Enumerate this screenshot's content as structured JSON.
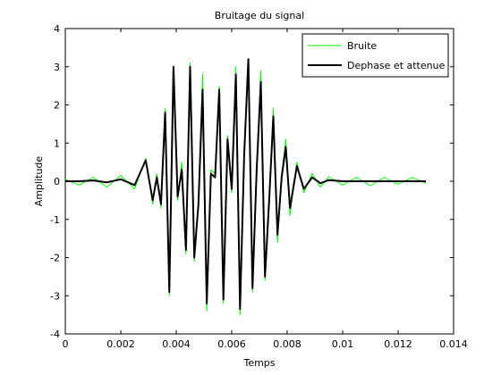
{
  "chart_data": {
    "type": "line",
    "title": "Bruitage du signal",
    "xlabel": "Temps",
    "ylabel": "Amplitude",
    "xlim": [
      0,
      0.014
    ],
    "ylim": [
      -4,
      4
    ],
    "xticks": [
      0,
      0.002,
      0.004,
      0.006,
      0.008,
      0.01,
      0.012,
      0.014
    ],
    "xtick_labels": [
      "0",
      "0.002",
      "0.004",
      "0.006",
      "0.008",
      "0.01",
      "0.012",
      "0.014"
    ],
    "yticks": [
      -4,
      -3,
      -2,
      -1,
      0,
      1,
      2,
      3,
      4
    ],
    "ytick_labels": [
      "-4",
      "-3",
      "-2",
      "-1",
      "0",
      "1",
      "2",
      "3",
      "4"
    ],
    "grid": false,
    "legend_position": "top-right",
    "series": [
      {
        "name": "Bruite",
        "color": "#00ff00",
        "x": [
          0,
          0.0005,
          0.001,
          0.0015,
          0.002,
          0.0025,
          0.0029,
          0.00315,
          0.0033,
          0.00345,
          0.0036,
          0.00375,
          0.0039,
          0.00405,
          0.0042,
          0.00435,
          0.0045,
          0.00465,
          0.0048,
          0.00495,
          0.0051,
          0.00525,
          0.0054,
          0.00555,
          0.0057,
          0.00585,
          0.006,
          0.00615,
          0.0063,
          0.00645,
          0.0066,
          0.00675,
          0.0069,
          0.00705,
          0.0072,
          0.00735,
          0.0075,
          0.00765,
          0.0078,
          0.00795,
          0.0081,
          0.00835,
          0.0086,
          0.0089,
          0.0092,
          0.0095,
          0.01,
          0.0105,
          0.011,
          0.0115,
          0.012,
          0.0125,
          0.013
        ],
        "y": [
          0.05,
          -0.1,
          0.1,
          -0.15,
          0.15,
          -0.2,
          0.6,
          -0.6,
          0.2,
          -0.7,
          1.9,
          -3.0,
          2.8,
          -0.5,
          0.5,
          -1.9,
          3.1,
          -2.1,
          -0.5,
          2.8,
          -3.4,
          0.3,
          0.2,
          2.5,
          -3.2,
          1.2,
          -0.3,
          3.0,
          -3.5,
          0.8,
          3.2,
          -2.9,
          0.4,
          2.9,
          -2.6,
          -0.6,
          1.9,
          -1.6,
          0.2,
          1.1,
          -0.9,
          0.5,
          -0.3,
          0.2,
          -0.15,
          0.12,
          -0.1,
          0.1,
          -0.12,
          0.1,
          -0.08,
          0.1,
          -0.05
        ]
      },
      {
        "name": "Dephase et attenue",
        "color": "#000000",
        "x": [
          0,
          0.0005,
          0.001,
          0.0015,
          0.002,
          0.0025,
          0.0029,
          0.00315,
          0.0033,
          0.00345,
          0.0036,
          0.00375,
          0.0039,
          0.00405,
          0.0042,
          0.00435,
          0.0045,
          0.00465,
          0.0048,
          0.00495,
          0.0051,
          0.00525,
          0.0054,
          0.00555,
          0.0057,
          0.00585,
          0.006,
          0.00615,
          0.0063,
          0.00645,
          0.0066,
          0.00675,
          0.0069,
          0.00705,
          0.0072,
          0.00735,
          0.0075,
          0.00765,
          0.0078,
          0.00795,
          0.0081,
          0.00835,
          0.0086,
          0.0089,
          0.0092,
          0.0095,
          0.01,
          0.0105,
          0.011,
          0.0115,
          0.012,
          0.0125,
          0.013
        ],
        "y": [
          0,
          0,
          0.02,
          -0.03,
          0.05,
          -0.1,
          0.55,
          -0.5,
          0.1,
          -0.6,
          1.8,
          -2.9,
          3.0,
          -0.4,
          0.3,
          -1.8,
          3.0,
          -2.0,
          -0.6,
          2.4,
          -3.2,
          0.2,
          0.1,
          2.4,
          -3.1,
          1.1,
          -0.2,
          2.8,
          -3.35,
          0.7,
          3.2,
          -2.8,
          0.3,
          2.6,
          -2.5,
          -0.5,
          1.7,
          -1.4,
          0.1,
          0.9,
          -0.7,
          0.4,
          -0.2,
          0.1,
          -0.05,
          0.03,
          0,
          0,
          0,
          0,
          0,
          0,
          0
        ]
      }
    ]
  }
}
